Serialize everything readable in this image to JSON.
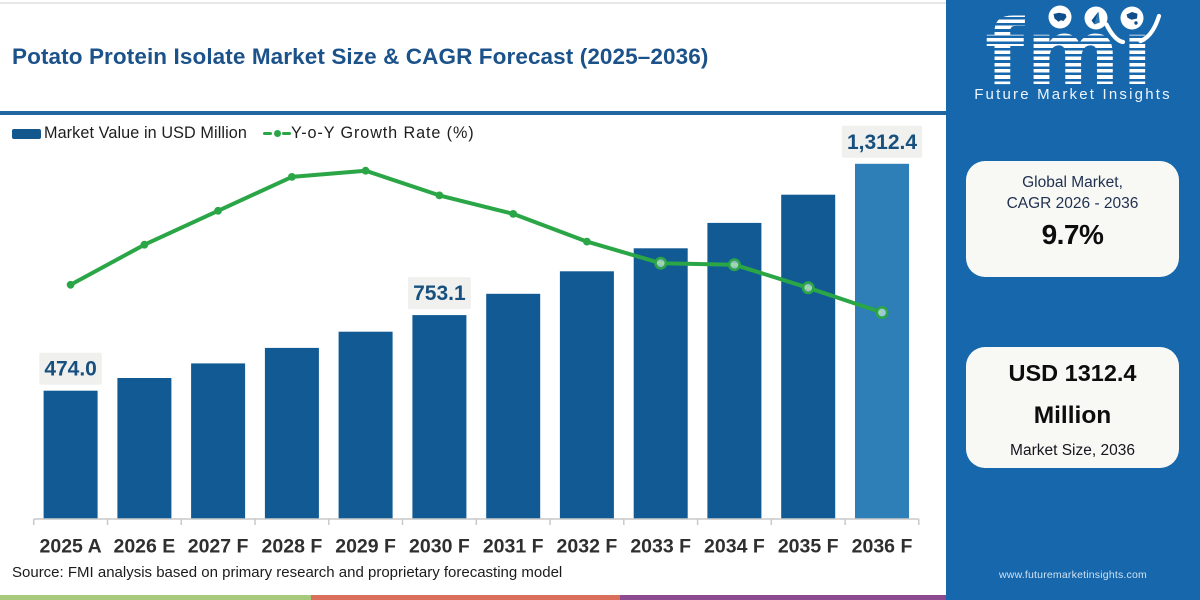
{
  "page": {
    "title": "Potato Protein Isolate Market Size & CAGR Forecast (2025–2036)",
    "source_note": "Source: FMI analysis based on primary research and proprietary forecasting model",
    "footer_strip_colors": [
      "#a6c97c",
      "#d96f5b",
      "#8c4a90"
    ],
    "title_color": "#1c528a",
    "rule_color": "#2168a3"
  },
  "legend": {
    "items": [
      {
        "label": "Market Value in USD Million",
        "marker": "bar-swatch",
        "color": "#14578d"
      },
      {
        "label": "Y-o-Y Growth Rate (%)",
        "marker": "line-dot",
        "color": "#2aa647"
      }
    ]
  },
  "chart_data": {
    "type": "bar+line",
    "title": "Potato Protein Isolate Market Size & CAGR Forecast (2025–2036)",
    "categories": [
      "2025 A",
      "2026 E",
      "2027 F",
      "2028 F",
      "2029 F",
      "2030 F",
      "2031 F",
      "2032 F",
      "2033 F",
      "2034 F",
      "2035 F",
      "2036 F"
    ],
    "series": [
      {
        "name": "Market Value in USD Million",
        "type": "bar",
        "unit": "USD Million",
        "color": "#115a93",
        "last_bar_color": "#2e7eb7",
        "values": [
          474.0,
          521.0,
          575.0,
          632.0,
          692.0,
          753.1,
          832.0,
          915.0,
          1000.0,
          1094.0,
          1198.0,
          1312.4
        ]
      },
      {
        "name": "Y-o-Y Growth Rate (%)",
        "type": "line",
        "unit": "%",
        "color": "#2aa647",
        "values": [
          7.6,
          8.9,
          10.0,
          11.1,
          11.3,
          10.5,
          9.9,
          9.0,
          8.3,
          8.25,
          7.5,
          6.7
        ],
        "marker_open_from_index": 8
      }
    ],
    "value_labels": [
      {
        "index": 0,
        "text": "474.0"
      },
      {
        "index": 5,
        "text": "753.1"
      },
      {
        "index": 11,
        "text": "1,312.4"
      }
    ],
    "ylabel": "",
    "xlabel": "",
    "ylim": [
      0,
      1511
    ],
    "y2lim": [
      0,
      13.27
    ],
    "grid": false,
    "legend_position": "top-left",
    "value_label_text_color": "#17507f",
    "value_label_bg": "#f0f0ee",
    "axis_color": "#c9c9c9",
    "tick_label_color": "#2f2f2f"
  },
  "sidebar": {
    "background": "#1767ac",
    "logo": {
      "text": "fmı",
      "subtitle": "Future Market Insights",
      "icons": [
        "us-map-icon",
        "compass-icon",
        "globe-icon"
      ]
    },
    "cagr_card": {
      "line1": "Global Market,",
      "line2": "CAGR 2026 - 2036",
      "value": "9.7%"
    },
    "size_card": {
      "value_line1": "USD 1312.4",
      "value_line2": "Million",
      "caption": "Market Size, 2036"
    },
    "website": "www.futuremarketinsights.com"
  }
}
